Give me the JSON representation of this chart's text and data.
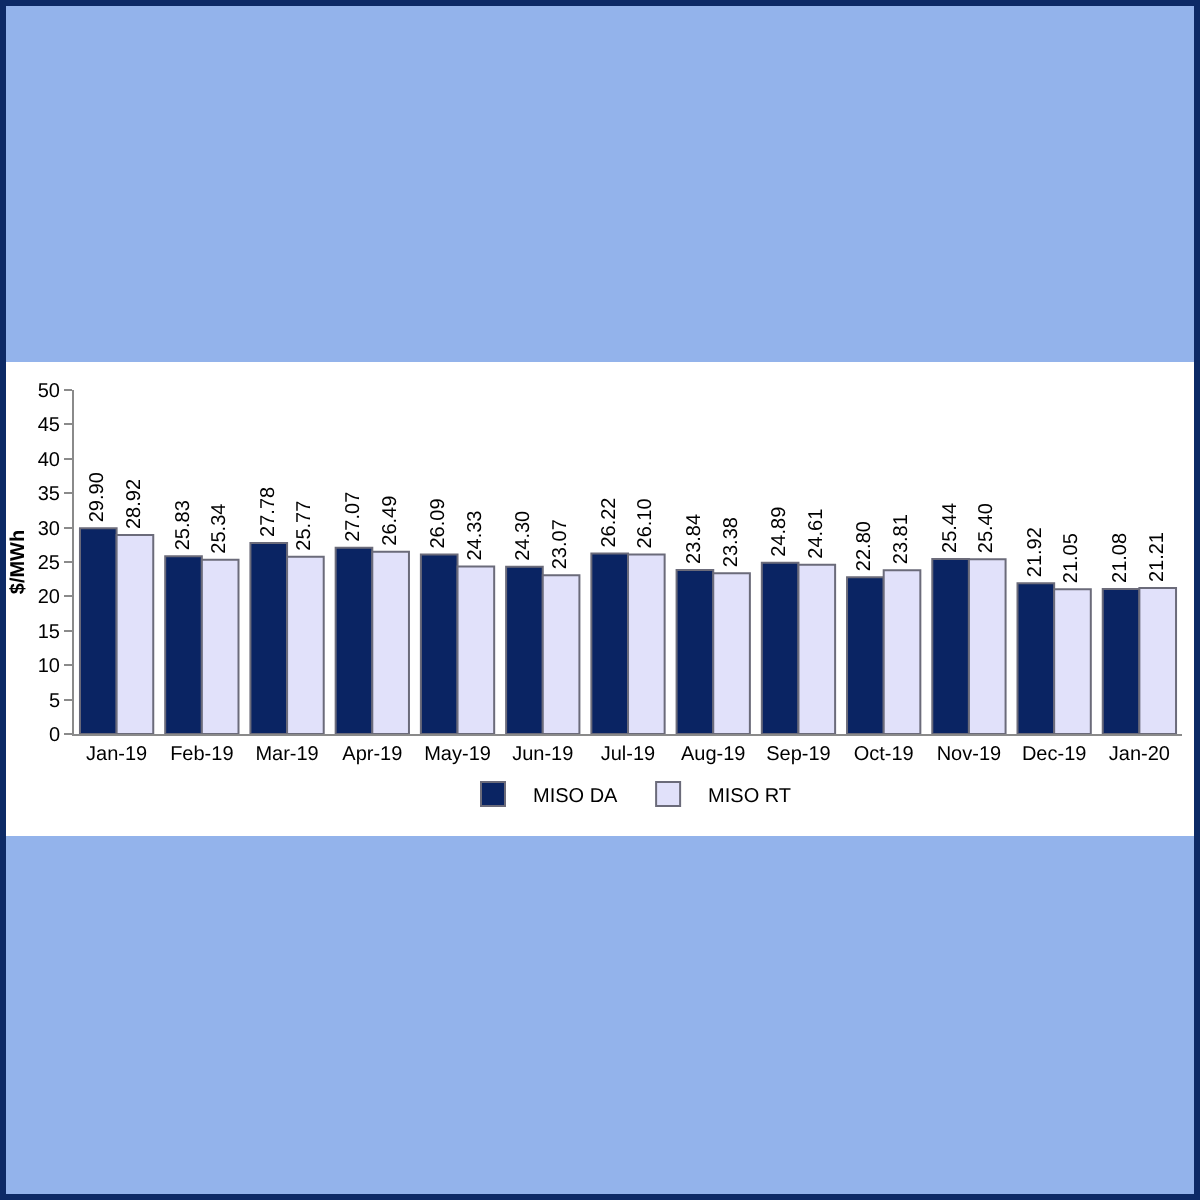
{
  "chart_data": {
    "type": "bar",
    "ylabel": "$/MWh",
    "categories": [
      "Jan-19",
      "Feb-19",
      "Mar-19",
      "Apr-19",
      "May-19",
      "Jun-19",
      "Jul-19",
      "Aug-19",
      "Sep-19",
      "Oct-19",
      "Nov-19",
      "Dec-19",
      "Jan-20"
    ],
    "series": [
      {
        "name": "MISO DA",
        "color": "#0a2463",
        "values": [
          29.9,
          25.83,
          27.78,
          27.07,
          26.09,
          24.3,
          26.22,
          23.84,
          24.89,
          22.8,
          25.44,
          21.92,
          21.08
        ],
        "value_labels": [
          "29.90",
          "25.83",
          "27.78",
          "27.07",
          "26.09",
          "24.30",
          "26.22",
          "23.84",
          "24.89",
          "22.80",
          "25.44",
          "21.92",
          "21.08"
        ]
      },
      {
        "name": "MISO RT",
        "color": "#e1e1fa",
        "values": [
          28.92,
          25.34,
          25.77,
          26.49,
          24.33,
          23.07,
          26.1,
          23.38,
          24.61,
          23.81,
          25.4,
          21.05,
          21.21
        ],
        "value_labels": [
          "28.92",
          "25.34",
          "25.77",
          "26.49",
          "24.33",
          "23.07",
          "26.10",
          "23.38",
          "24.61",
          "23.81",
          "25.40",
          "21.05",
          "21.21"
        ]
      }
    ],
    "ylim": [
      0,
      50
    ],
    "yticks": [
      0,
      5,
      10,
      15,
      20,
      25,
      30,
      35,
      40,
      45,
      50
    ],
    "legend": "bottom"
  }
}
